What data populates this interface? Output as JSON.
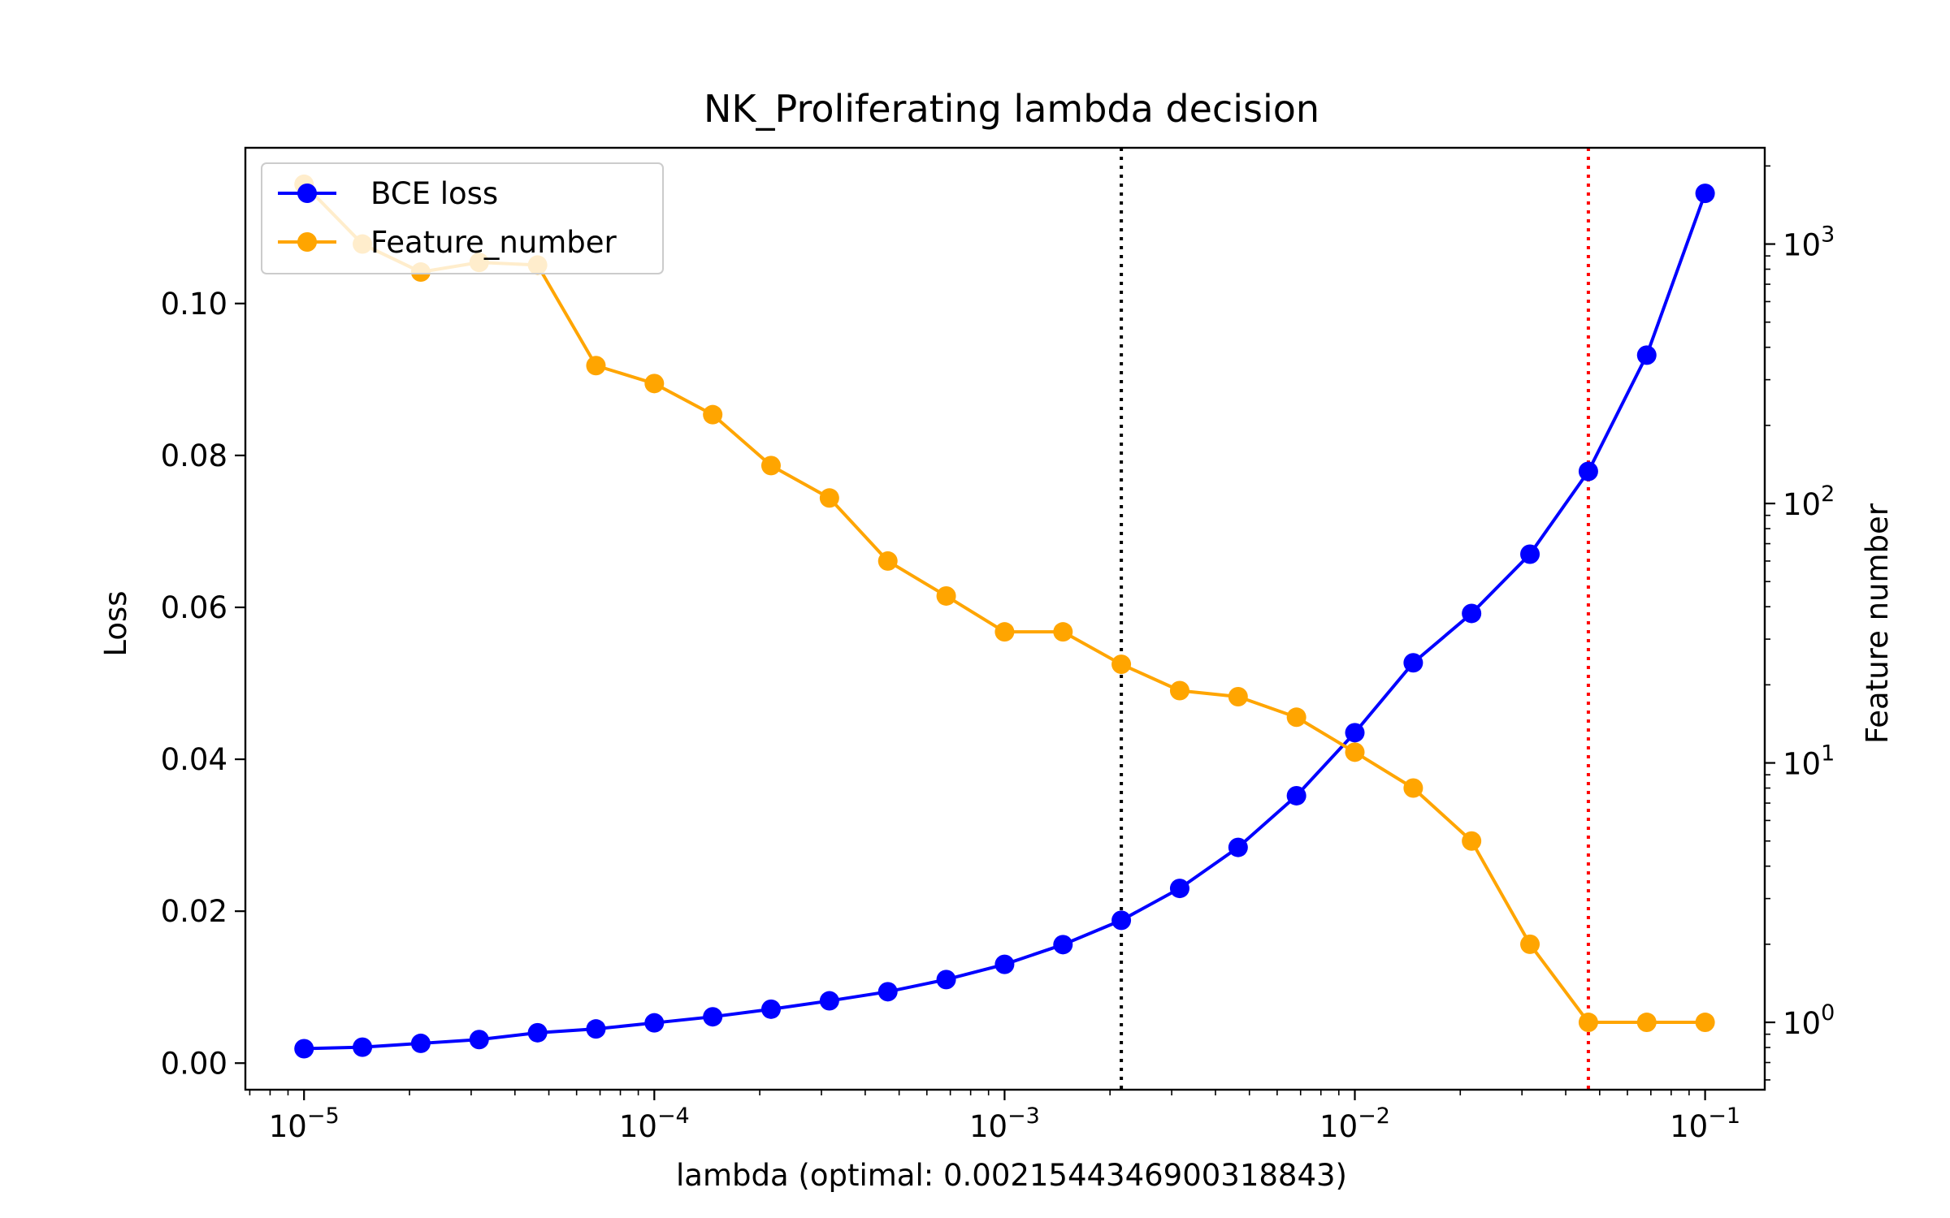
{
  "chart_data": {
    "type": "line",
    "title": "NK_Proliferating lambda decision",
    "xlabel": "lambda (optimal: 0.0021544346900318843)",
    "ylabel": "Loss",
    "ylabel_right": "Feature number",
    "xscale": "log",
    "xlim": [
      6.8e-06,
      0.148
    ],
    "ylim": [
      -0.0035,
      0.1205
    ],
    "ylim_right_log": [
      0.55,
      2350
    ],
    "x_ticks": [
      {
        "value": 1e-05,
        "base": "10",
        "exp": "−5"
      },
      {
        "value": 0.0001,
        "base": "10",
        "exp": "−4"
      },
      {
        "value": 0.001,
        "base": "10",
        "exp": "−3"
      },
      {
        "value": 0.01,
        "base": "10",
        "exp": "−2"
      },
      {
        "value": 0.1,
        "base": "10",
        "exp": "−1"
      }
    ],
    "y_ticks": [
      "0.00",
      "0.02",
      "0.04",
      "0.06",
      "0.08",
      "0.10"
    ],
    "y_right_ticks": [
      {
        "value": 1,
        "base": "10",
        "exp": "0"
      },
      {
        "value": 10,
        "base": "10",
        "exp": "1"
      },
      {
        "value": 100,
        "base": "10",
        "exp": "2"
      },
      {
        "value": 1000,
        "base": "10",
        "exp": "3"
      }
    ],
    "x": [
      1e-05,
      1.468e-05,
      2.154e-05,
      3.162e-05,
      4.642e-05,
      6.813e-05,
      0.0001,
      0.0001468,
      0.0002154,
      0.0003162,
      0.0004642,
      0.0006813,
      0.001,
      0.001468,
      0.002154,
      0.003162,
      0.004642,
      0.006813,
      0.01,
      0.01468,
      0.02154,
      0.03162,
      0.04642,
      0.06813,
      0.1
    ],
    "series": [
      {
        "name": "BCE loss",
        "axis": "left",
        "color": "#0000ff",
        "values": [
          0.0019,
          0.0021,
          0.0026,
          0.0031,
          0.004,
          0.0045,
          0.0053,
          0.0061,
          0.0071,
          0.0082,
          0.0094,
          0.011,
          0.013,
          0.0156,
          0.0188,
          0.023,
          0.0284,
          0.0352,
          0.0435,
          0.0527,
          0.0592,
          0.067,
          0.0779,
          0.0932,
          0.1145
        ]
      },
      {
        "name": "Feature_number",
        "axis": "right",
        "color": "#ffa500",
        "values": [
          1700,
          1000,
          780,
          850,
          830,
          340,
          290,
          220,
          140,
          105,
          60,
          44,
          32,
          32,
          24,
          19,
          18,
          15,
          11,
          8,
          5,
          2,
          1,
          1,
          1
        ]
      }
    ],
    "vlines": [
      {
        "x": 0.0021544346900318843,
        "color": "#000000",
        "style": "dotted"
      },
      {
        "x": 0.04642,
        "color": "#ff0000",
        "style": "dotted"
      }
    ],
    "legend": "top-left",
    "grid": false
  }
}
